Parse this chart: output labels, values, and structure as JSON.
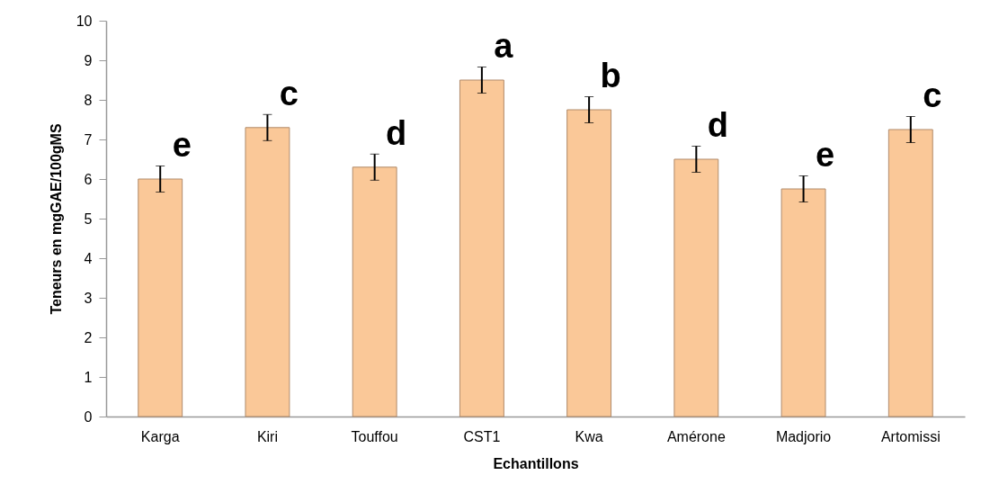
{
  "chart_data": {
    "type": "bar",
    "xlabel": "Echantillons",
    "ylabel": "Teneurs en mgGAE/100gMS",
    "categories": [
      "Karga",
      "Kiri",
      "Touffou",
      "CST1",
      "Kwa",
      "Amérone",
      "Madjorio",
      "Artomissi"
    ],
    "values": [
      6.0,
      7.3,
      6.3,
      8.5,
      7.75,
      6.5,
      5.75,
      7.25
    ],
    "errors": [
      0.33,
      0.33,
      0.33,
      0.33,
      0.33,
      0.33,
      0.33,
      0.33
    ],
    "color": "#fac898",
    "ylim": [
      0,
      10
    ],
    "yticks": [
      0,
      1,
      2,
      3,
      4,
      5,
      6,
      7,
      8,
      9,
      10
    ],
    "grid": false,
    "annotations": [
      "e",
      "c",
      "d",
      "a",
      "b",
      "d",
      "e",
      "c"
    ]
  }
}
